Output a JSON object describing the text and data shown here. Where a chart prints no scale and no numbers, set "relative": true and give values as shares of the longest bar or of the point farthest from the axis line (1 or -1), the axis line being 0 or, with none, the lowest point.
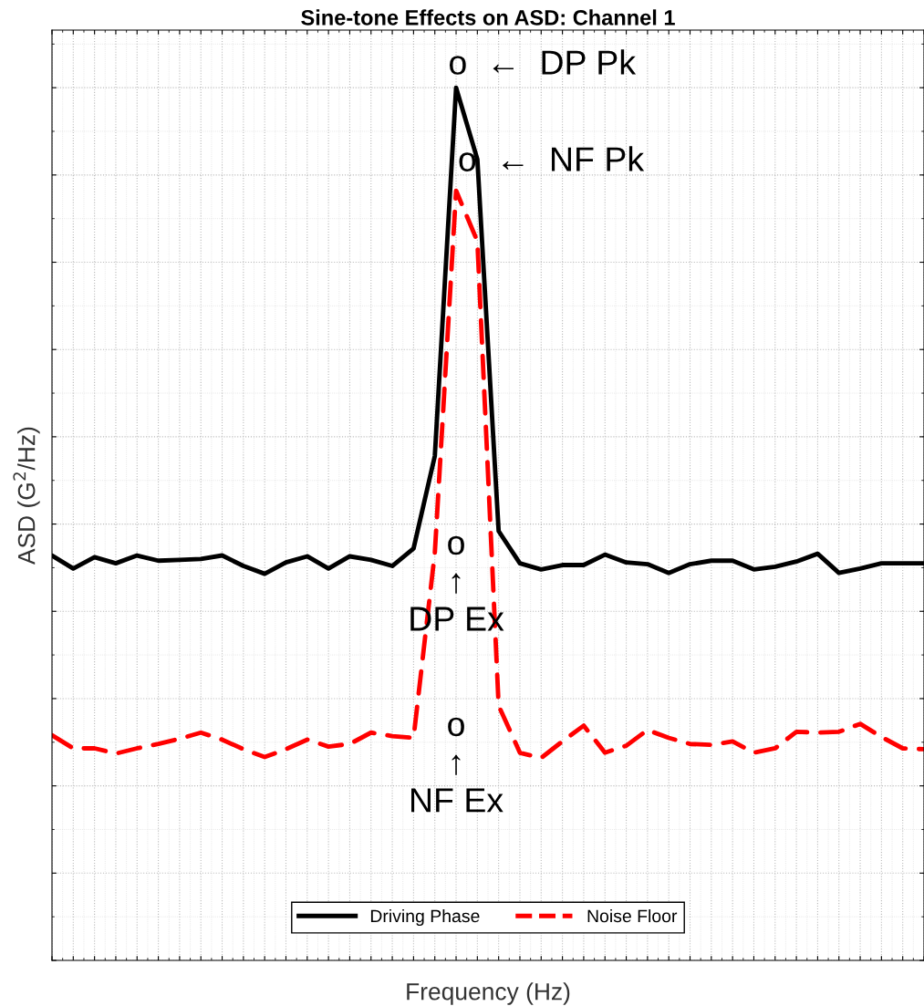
{
  "chart_data": {
    "type": "line",
    "title": "Sine-tone Effects on ASD: Channel 1",
    "xlabel": "Frequency (Hz)",
    "ylabel": "ASD (G$^{2}$/Hz)",
    "relative": true,
    "tick_labels": false,
    "grid": true,
    "legend": "bottom",
    "categories": [
      null,
      null,
      null,
      null,
      null,
      null,
      null,
      null,
      null,
      null,
      null,
      null,
      null,
      null,
      null,
      null,
      null,
      null,
      null,
      null,
      null,
      null,
      null,
      null,
      null,
      null,
      null,
      null,
      null,
      null,
      null,
      null,
      null,
      null,
      null,
      null,
      null,
      null,
      null,
      null,
      null,
      null
    ],
    "series": [
      {
        "name": "Driving Phase",
        "color": "#000000",
        "line_style": "solid",
        "values": [
          0.464,
          0.449,
          0.462,
          0.455,
          0.464,
          0.458,
          0.459,
          0.46,
          0.464,
          0.452,
          0.443,
          0.456,
          0.463,
          0.449,
          0.463,
          0.459,
          0.452,
          0.472,
          0.578,
          1,
          0.918,
          0.492,
          0.455,
          0.448,
          0.453,
          0.453,
          0.465,
          0.456,
          0.454,
          0.444,
          0.454,
          0.458,
          0.458,
          0.448,
          0.451,
          0.457,
          0.466,
          0.444,
          0.449,
          0.455,
          0.455,
          0.455
        ]
      },
      {
        "name": "Noise Floor",
        "color": "#ff0000",
        "line_style": "dashed",
        "values": [
          0.258,
          0.243,
          0.243,
          0.237,
          0.243,
          0.248,
          0.254,
          0.261,
          0.253,
          0.242,
          0.233,
          0.242,
          0.253,
          0.245,
          0.248,
          0.261,
          0.257,
          0.255,
          0.467,
          0.882,
          0.824,
          0.292,
          0.238,
          0.232,
          0.251,
          0.269,
          0.238,
          0.246,
          0.264,
          0.255,
          0.248,
          0.247,
          0.251,
          0.238,
          0.243,
          0.262,
          0.261,
          0.262,
          0.271,
          0.256,
          0.243,
          0.242
        ]
      }
    ],
    "annotations": [
      "o  ←  DP Pk",
      "o  ←  NF Pk",
      "o\n↑\nDP Ex",
      "o\n↑\nNF Ex"
    ]
  }
}
